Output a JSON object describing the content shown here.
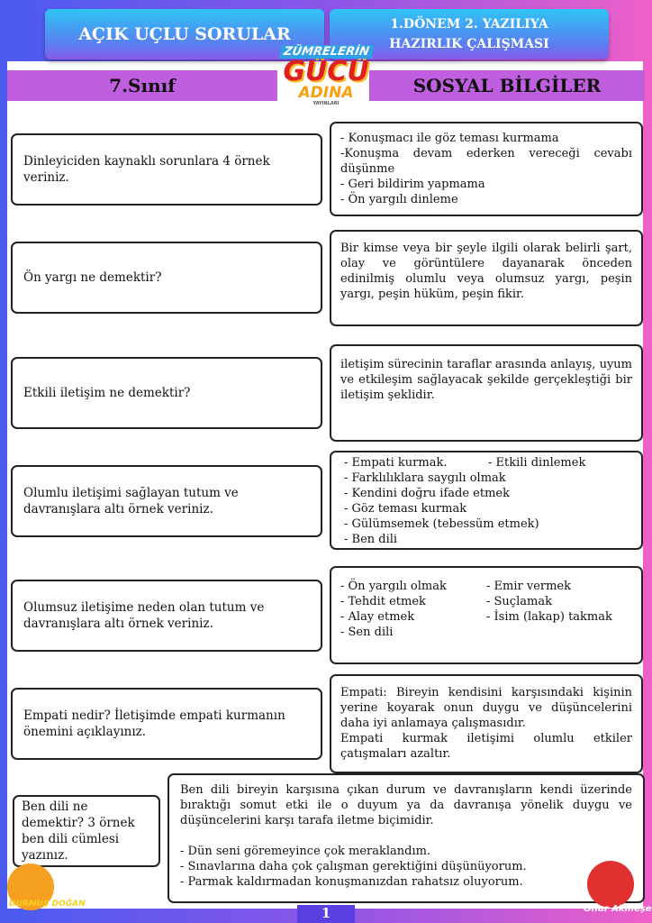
{
  "header": {
    "left_title": "AÇIK UÇLU SORULAR",
    "right_title_line1": "1.DÖNEM 2. YAZILIYA",
    "right_title_line2": "HAZIRLIK ÇALIŞMASI",
    "grade": "7.Sınıf",
    "subject": "SOSYAL BİLGİLER"
  },
  "logo": {
    "line1": "ZÜMRELERİN",
    "line2": "GÜCÜ",
    "line3": "ADINA",
    "line4": "YAYINLARI"
  },
  "items": [
    {
      "question": "Dinleyiciden kaynaklı sorunlara 4 örnek veriniz.",
      "answer": [
        "- Konuşmacı ile göz teması kurmama",
        "-Konuşma devam ederken vereceği cevabı düşünme",
        "- Geri bildirim yapmama",
        "- Ön yargılı dinleme"
      ]
    },
    {
      "question": "Ön yargı ne demektir?",
      "answer": [
        "Bir kimse veya bir şeyle ilgili olarak belirli şart, olay ve görüntülere dayanarak önceden edinilmiş olumlu veya olumsuz yargı, peşin yargı, peşin hüküm, peşin fikir."
      ]
    },
    {
      "question": "Etkili iletişim ne demektir?",
      "answer": [
        "iletişim sürecinin taraflar arasında anlayış, uyum ve etkileşim sağlayacak şekilde gerçekleştiği bir iletişim şeklidir."
      ]
    },
    {
      "question": "Olumlu iletişimi sağlayan tutum ve davranışlara altı örnek veriniz.",
      "answer": [
        "- Empati kurmak.",
        "- Etkili dinlemek",
        "- Farklılıklara saygılı olmak",
        "- Kendini doğru ifade etmek",
        "- Göz teması kurmak",
        "- Gülümsemek (tebessüm etmek)",
        "- Ben dili"
      ]
    },
    {
      "question": "Olumsuz iletişime neden olan tutum ve davranışlara altı örnek veriniz.",
      "answer": [
        "- Ön yargılı olmak",
        "- Emir vermek",
        "- Tehdit etmek",
        "- Suçlamak",
        "- Alay etmek",
        "- İsim (lakap) takmak",
        "- Sen dili"
      ]
    },
    {
      "question": "Empati nedir? İletişimde empati kurmanın önemini açıklayınız.",
      "answer": [
        "Empati: Bireyin kendisini karşısındaki kişinin yerine koyarak onun duygu ve düşüncelerini daha iyi anlamaya çalışmasıdır.",
        "Empati kurmak iletişimi olumlu etkiler çatışmaları azaltır."
      ]
    },
    {
      "question": "Ben dili ne demektir? 3 örnek ben dili cümlesi yazınız.",
      "answer": [
        "Ben dili bireyin karşısına çıkan durum ve davranışların kendi üzerinde bıraktığı somut etki ile o duyum ya da davranışa yönelik duygu ve düşüncelerini karşı tarafa iletme biçimidir.",
        "- Dün seni göremeyince çok meraklandım.",
        "- Sınavlarına daha çok çalışman gerektiğini düşünüyorum.",
        "- Parmak kaldırmadan konuşmanızdan rahatsız oluyorum."
      ]
    }
  ],
  "footer": {
    "page_number": "1",
    "author_left": "DURMUŞ DOĞAN",
    "author_right": "Onur Akmeşe"
  }
}
